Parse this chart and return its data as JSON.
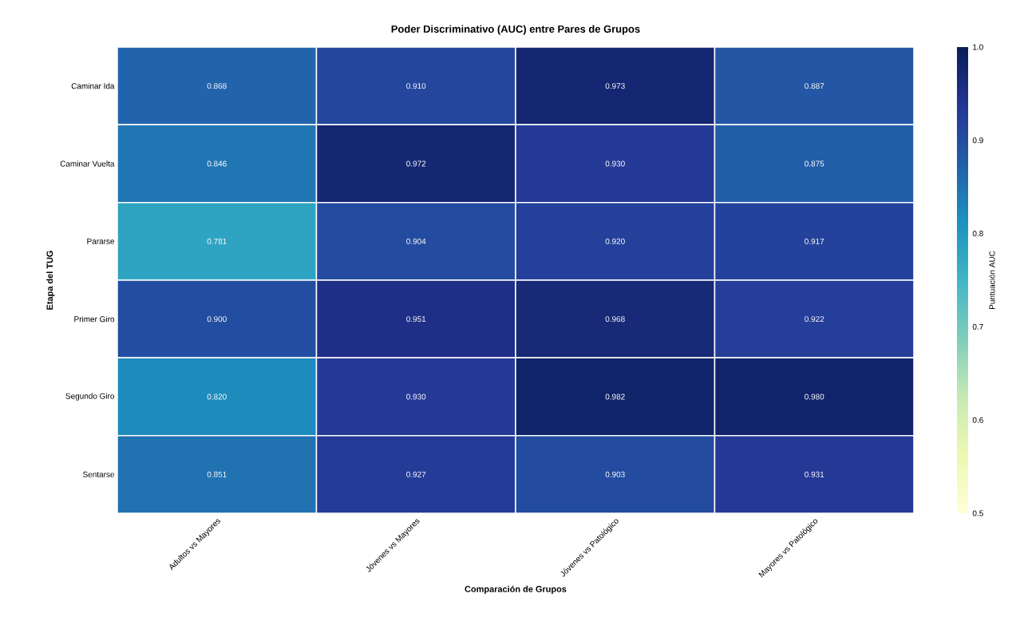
{
  "chart_data": {
    "type": "heatmap",
    "title": "Poder Discriminativo (AUC) entre Pares de Grupos",
    "xlabel": "Comparación de Grupos",
    "ylabel": "Etapa del TUG",
    "clabel": "Puntuación AUC",
    "categories": [
      "Adultos vs Mayores",
      "Jóvenes vs Mayores",
      "Jóvenes vs Patológico",
      "Mayores vs Patológico"
    ],
    "y_categories": [
      "Caminar Ida",
      "Caminar Vuelta",
      "Pararse",
      "Primer Giro",
      "Segundo Giro",
      "Sentarse"
    ],
    "cells": [
      [
        0.868,
        0.91,
        0.973,
        0.887
      ],
      [
        0.846,
        0.972,
        0.93,
        0.875
      ],
      [
        0.781,
        0.904,
        0.92,
        0.917
      ],
      [
        0.9,
        0.951,
        0.968,
        0.922
      ],
      [
        0.82,
        0.93,
        0.982,
        0.98
      ],
      [
        0.851,
        0.927,
        0.903,
        0.931
      ]
    ],
    "cell_labels": [
      [
        "0.868",
        "0.910",
        "0.973",
        "0.887"
      ],
      [
        "0.846",
        "0.972",
        "0.930",
        "0.875"
      ],
      [
        "0.781",
        "0.904",
        "0.920",
        "0.917"
      ],
      [
        "0.900",
        "0.951",
        "0.968",
        "0.922"
      ],
      [
        "0.820",
        "0.930",
        "0.982",
        "0.980"
      ],
      [
        "0.851",
        "0.927",
        "0.903",
        "0.931"
      ]
    ],
    "clim": [
      0.5,
      1.0
    ],
    "cticks": [
      0.5,
      0.6,
      0.7,
      0.8,
      0.9,
      {
        "value": 1.0,
        "label": "1.0"
      }
    ]
  }
}
